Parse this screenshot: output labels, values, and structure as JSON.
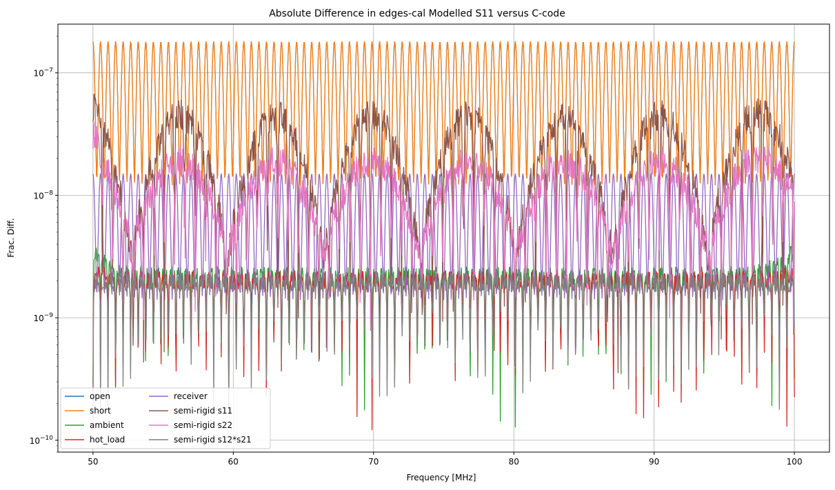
{
  "chart_data": {
    "type": "line",
    "title": "Absolute Difference in edges-cal Modelled S11 versus C-code",
    "xlabel": "Frequency [MHz]",
    "ylabel": "Frac. Diff.",
    "xlim": [
      47.5,
      102.5
    ],
    "ylim": [
      8e-11,
      2.5e-07
    ],
    "yscale": "log",
    "grid": true,
    "legend": {
      "placement": "lower-left",
      "columns": 2
    },
    "x_ticks": [
      50,
      60,
      70,
      80,
      90,
      100
    ],
    "x_tick_labels": [
      "50",
      "60",
      "70",
      "80",
      "90",
      "100"
    ],
    "y_ticks": [
      1e-10,
      1e-09,
      1e-08,
      1e-07
    ],
    "y_tick_labels": [
      {
        "base": "10",
        "exp": "−10"
      },
      {
        "base": "10",
        "exp": "−9"
      },
      {
        "base": "10",
        "exp": "−8"
      },
      {
        "base": "10",
        "exp": "−7"
      }
    ],
    "x_start": 50,
    "x_end": 100,
    "series": [
      {
        "name": "open",
        "color": "#1f77b4",
        "shape": "osc",
        "cycles": 93,
        "lo": 1.2e-08,
        "hi": 1.8e-07
      },
      {
        "name": "short",
        "color": "#ff7f0e",
        "shape": "osc",
        "cycles": 93,
        "lo": 1.2e-08,
        "hi": 1.8e-07
      },
      {
        "name": "ambient",
        "color": "#2ca02c",
        "shape": "dips",
        "cycles": 93,
        "lo": 1.3e-10,
        "hi": 2.6e-09,
        "edge_hi": 4.3e-09
      },
      {
        "name": "hot_load",
        "color": "#d62728",
        "shape": "dips",
        "cycles": 93,
        "lo": 1.1e-10,
        "hi": 2.4e-09,
        "edge_hi": 2.8e-09
      },
      {
        "name": "receiver",
        "color": "#9467bd",
        "shape": "osc",
        "cycles": 93,
        "lo": 1.4e-09,
        "hi": 1.5e-08
      },
      {
        "name": "semi-rigid s11",
        "color": "#8c564b",
        "shape": "noisy",
        "lo": 4e-10,
        "hi": 6e-08,
        "edge_hi": 9.7e-08
      },
      {
        "name": "semi-rigid s22",
        "color": "#e377c2",
        "shape": "noisy",
        "lo": 1e-09,
        "hi": 2.5e-08,
        "edge_hi": 4.8e-08
      },
      {
        "name": "semi-rigid s12*s21",
        "color": "#7f7f7f",
        "shape": "dips",
        "cycles": 93,
        "lo": 1.5e-10,
        "hi": 2.3e-09,
        "edge_hi": 2.3e-09
      }
    ]
  }
}
